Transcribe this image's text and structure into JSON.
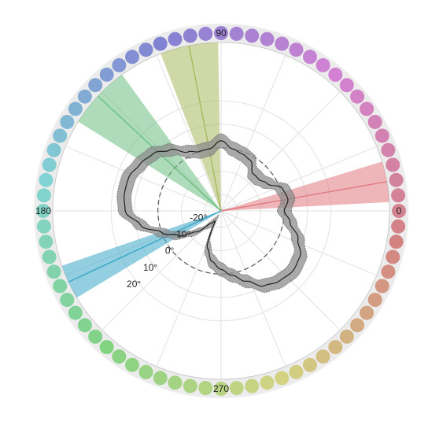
{
  "chart_data": {
    "type": "polar",
    "angle_ticks": [
      {
        "deg": 0,
        "label": "0"
      },
      {
        "deg": 90,
        "label": "90"
      },
      {
        "deg": 180,
        "label": "180"
      },
      {
        "deg": 270,
        "label": "270"
      }
    ],
    "r_ticks": [
      {
        "value": -20,
        "label": "-20°"
      },
      {
        "value": -10,
        "label": "-10°"
      },
      {
        "value": 0,
        "label": "0°"
      },
      {
        "value": 10,
        "label": "10°"
      },
      {
        "value": 20,
        "label": "20°"
      }
    ],
    "r_min": -27,
    "r_max": 45,
    "reference_circle_r": 0,
    "color_ring": {
      "count": 72
    },
    "wedges": [
      {
        "center_deg": 10,
        "width_deg": 14,
        "color": "#e07a80"
      },
      {
        "center_deg": 101,
        "width_deg": 20,
        "color": "#a8b85e"
      },
      {
        "center_deg": 137,
        "width_deg": 22,
        "color": "#6cbf82"
      },
      {
        "center_deg": 205,
        "width_deg": 12,
        "color": "#3aa7c6"
      }
    ],
    "curve": {
      "band_width": 3,
      "points": [
        [
          0,
          0
        ],
        [
          10,
          2
        ],
        [
          20,
          1
        ],
        [
          30,
          -4
        ],
        [
          40,
          -6
        ],
        [
          50,
          -6
        ],
        [
          60,
          -2
        ],
        [
          70,
          -1
        ],
        [
          80,
          0
        ],
        [
          90,
          3
        ],
        [
          100,
          0
        ],
        [
          110,
          0
        ],
        [
          120,
          2
        ],
        [
          130,
          7
        ],
        [
          140,
          11
        ],
        [
          150,
          13
        ],
        [
          160,
          15
        ],
        [
          170,
          15
        ],
        [
          180,
          14
        ],
        [
          190,
          8
        ],
        [
          200,
          0
        ],
        [
          210,
          -6
        ],
        [
          220,
          -13
        ],
        [
          230,
          -20
        ],
        [
          240,
          -22
        ],
        [
          250,
          -10
        ],
        [
          260,
          -5
        ],
        [
          270,
          -2
        ],
        [
          280,
          1
        ],
        [
          290,
          5
        ],
        [
          300,
          10
        ],
        [
          310,
          12
        ],
        [
          320,
          13
        ],
        [
          330,
          12
        ],
        [
          340,
          8
        ],
        [
          350,
          3
        ]
      ]
    }
  }
}
